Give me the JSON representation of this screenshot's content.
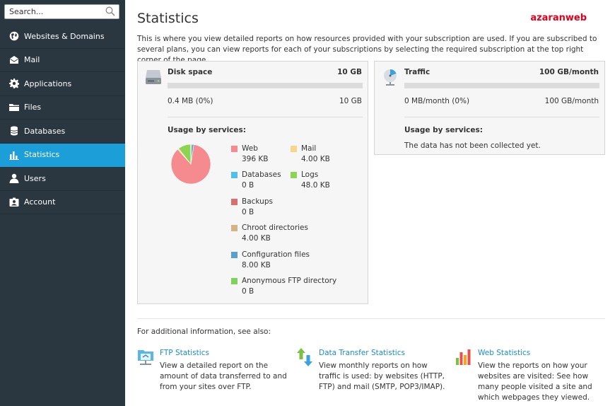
{
  "search": {
    "placeholder": "Search..."
  },
  "sidebar": {
    "items": [
      {
        "label": "Websites & Domains",
        "icon": "globe-icon"
      },
      {
        "label": "Mail",
        "icon": "mail-icon"
      },
      {
        "label": "Applications",
        "icon": "gear-icon"
      },
      {
        "label": "Files",
        "icon": "folder-icon"
      },
      {
        "label": "Databases",
        "icon": "database-icon"
      },
      {
        "label": "Statistics",
        "icon": "bar-chart-icon",
        "active": true
      },
      {
        "label": "Users",
        "icon": "user-icon"
      },
      {
        "label": "Account",
        "icon": "account-icon"
      }
    ]
  },
  "header": {
    "title": "Statistics",
    "brand": "azaranweb",
    "intro": "This is where you view detailed reports on how resources provided with your subscription are used. If you are subscribed to several plans, you can view reports for each of your subscriptions by selecting the required subscription at the top right corner of the page."
  },
  "disk": {
    "title": "Disk space",
    "total": "10 GB",
    "used": "0.4 MB (0%)",
    "available": "10 GB",
    "usage_fraction": 0,
    "usage_title": "Usage by services:",
    "services": [
      {
        "name": "Web",
        "value": "396 KB",
        "kb": 396,
        "color": "#f58b8e"
      },
      {
        "name": "Mail",
        "value": "4.00 KB",
        "kb": 4,
        "color": "#f9d58b"
      },
      {
        "name": "Databases",
        "value": "0 B",
        "kb": 0,
        "color": "#4fc1e9"
      },
      {
        "name": "Logs",
        "value": "48.0 KB",
        "kb": 48,
        "color": "#8cd54f"
      },
      {
        "name": "Backups",
        "value": "0 B",
        "kb": 0,
        "color": "#d97070"
      },
      {
        "name": "Chroot directories",
        "value": "4.00 KB",
        "kb": 4,
        "color": "#d4b483"
      },
      {
        "name": "Configuration files",
        "value": "8.00 KB",
        "kb": 8,
        "color": "#5aa0cc"
      },
      {
        "name": "Anonymous FTP directory",
        "value": "0 B",
        "kb": 0,
        "color": "#7ed35a"
      }
    ]
  },
  "traffic": {
    "title": "Traffic",
    "total": "100 GB/month",
    "used": "0 MB/month (0%)",
    "available": "100 GB/month",
    "usage_fraction": 0,
    "usage_title": "Usage by services:",
    "no_data": "The data has not been collected yet."
  },
  "see_also": {
    "heading": "For additional information, see also:",
    "links": [
      {
        "title": "FTP Statistics",
        "desc": "View a detailed report on the amount of data transferred to and from your sites over FTP.",
        "icon": "ftp-icon"
      },
      {
        "title": "Data Transfer Statistics",
        "desc": "View monthly reports on how traffic is used: by websites (HTTP, FTP) and mail (SMTP, POP3/IMAP).",
        "icon": "transfer-arrows-icon"
      },
      {
        "title": "Web Statistics",
        "desc": "View the reports on how your websites are visited: See how many people visited a site and which webpages they viewed.",
        "icon": "web-stats-icon"
      }
    ]
  }
}
